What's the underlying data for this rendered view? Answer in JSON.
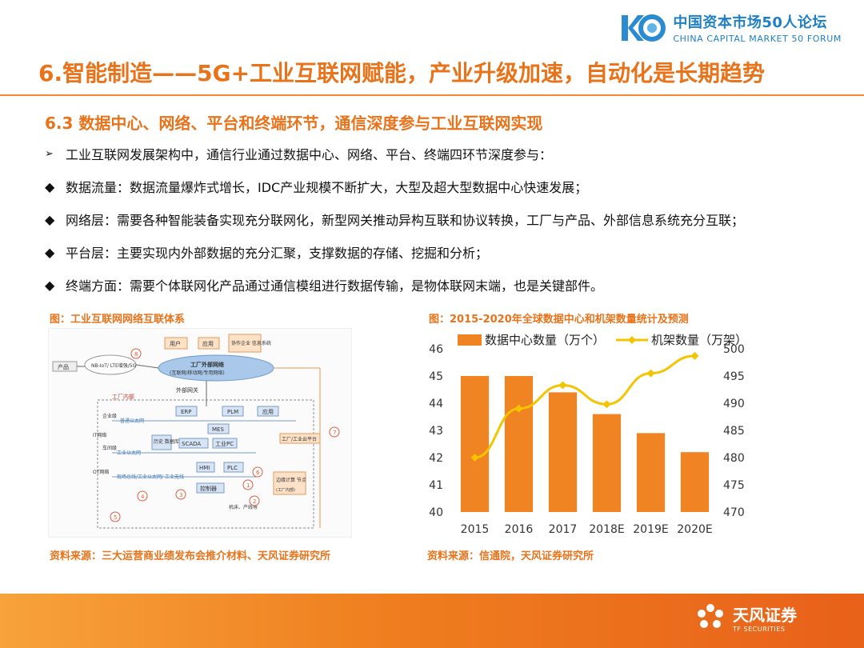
{
  "header": {
    "logo_cn": "中国资本市场50人论坛",
    "logo_en": "CHINA CAPITAL MARKET 50 FORUM",
    "logo_mark": "K50"
  },
  "main_title": "6.智能制造——5G+工业互联网赋能，产业升级加速，自动化是长期趋势",
  "subtitle": "6.3 数据中心、网络、平台和终端环节，通信深度参与工业互联网实现",
  "bullets": [
    {
      "marker": "➢",
      "text": "工业互联网发展架构中，通信行业通过数据中心、网络、平台、终端四环节深度参与："
    },
    {
      "marker": "◆",
      "text": "数据流量：数据流量爆炸式增长，IDC产业规模不断扩大，大型及超大型数据中心快速发展；"
    },
    {
      "marker": "◆",
      "text": "网络层：需要各种智能装备实现充分联网化，新型网关推动异构互联和协议转换，工厂与产品、外部信息系统充分互联；"
    },
    {
      "marker": "◆",
      "text": "平台层：主要实现内外部数据的充分汇聚，支撑数据的存储、挖掘和分析；"
    },
    {
      "marker": "◆",
      "text": "终端方面：需要个体联网化产品通过通信模组进行数据传输，是物体联网末端，也是关键部件。"
    }
  ],
  "left_figure": {
    "caption": "图：工业互联网网络互联体系",
    "source": "资料来源：三大运营商业绩发布会推介材料、天风证券研究所",
    "labels": {
      "user": "用户",
      "app": "应用",
      "partner": "协作企业\n信息系统",
      "product": "产品",
      "nbiot": "NB-IoT/\nLTE增强/5G",
      "cloud": "工厂外部网络",
      "cloud_sub": "(互联网/移动网/专用网络)",
      "gateway": "外部网关",
      "factory_inside": "工厂内部",
      "erp": "ERP",
      "plm": "PLM",
      "app2": "应用",
      "enterprise": "企业级",
      "it_net": "IT网络",
      "ot_net": "OT网络",
      "workshop": "车间级",
      "normal_eth": "普通以太网",
      "mes": "MES",
      "history_db": "历史\n数据库",
      "scada": "SCADA",
      "ipc": "工业PC",
      "industrial_eth": "工业以太网",
      "cloud_platform": "工厂/工业云平台",
      "hmi": "HMI",
      "plc": "PLC",
      "field_bus": "现场总线/工业以太网/\n工业无线",
      "controller": "控制器",
      "edge": "边缘计算\n节点",
      "edge_sub": "(工厂内部)",
      "device1": "机床、产线等",
      "n1": "1",
      "n2": "2",
      "n3": "3",
      "n4": "4",
      "n5": "5",
      "n6": "6",
      "n7": "7",
      "n8": "8"
    }
  },
  "chart_data": {
    "type": "bar+line",
    "title": "图：2015-2020年全球数据中心和机架数量统计及预测",
    "categories": [
      "2015",
      "2016",
      "2017",
      "2018E",
      "2019E",
      "2020E"
    ],
    "series": [
      {
        "name": "数据中心数量（万个）",
        "type": "bar",
        "axis": "left",
        "values": [
          45.0,
          45.0,
          44.4,
          43.6,
          42.9,
          42.2
        ]
      },
      {
        "name": "机架数量（万架）",
        "type": "line",
        "axis": "right",
        "values": [
          480.0,
          489.0,
          493.3,
          489.8,
          495.5,
          498.7
        ]
      }
    ],
    "y_left": {
      "range": [
        40,
        46
      ],
      "ticks": [
        40,
        41,
        42,
        43,
        44,
        45,
        46
      ]
    },
    "y_right": {
      "range": [
        470,
        500
      ],
      "ticks": [
        470,
        475,
        480,
        485,
        490,
        495,
        500
      ]
    },
    "legend_position": "top",
    "grid": false,
    "colors": {
      "bar": "#f08422",
      "line": "#f4c400"
    },
    "source": "资料来源：信通院，天风证券研究所"
  },
  "footer": {
    "logo_cn": "天风证券",
    "logo_en": "TF SECURITIES"
  }
}
